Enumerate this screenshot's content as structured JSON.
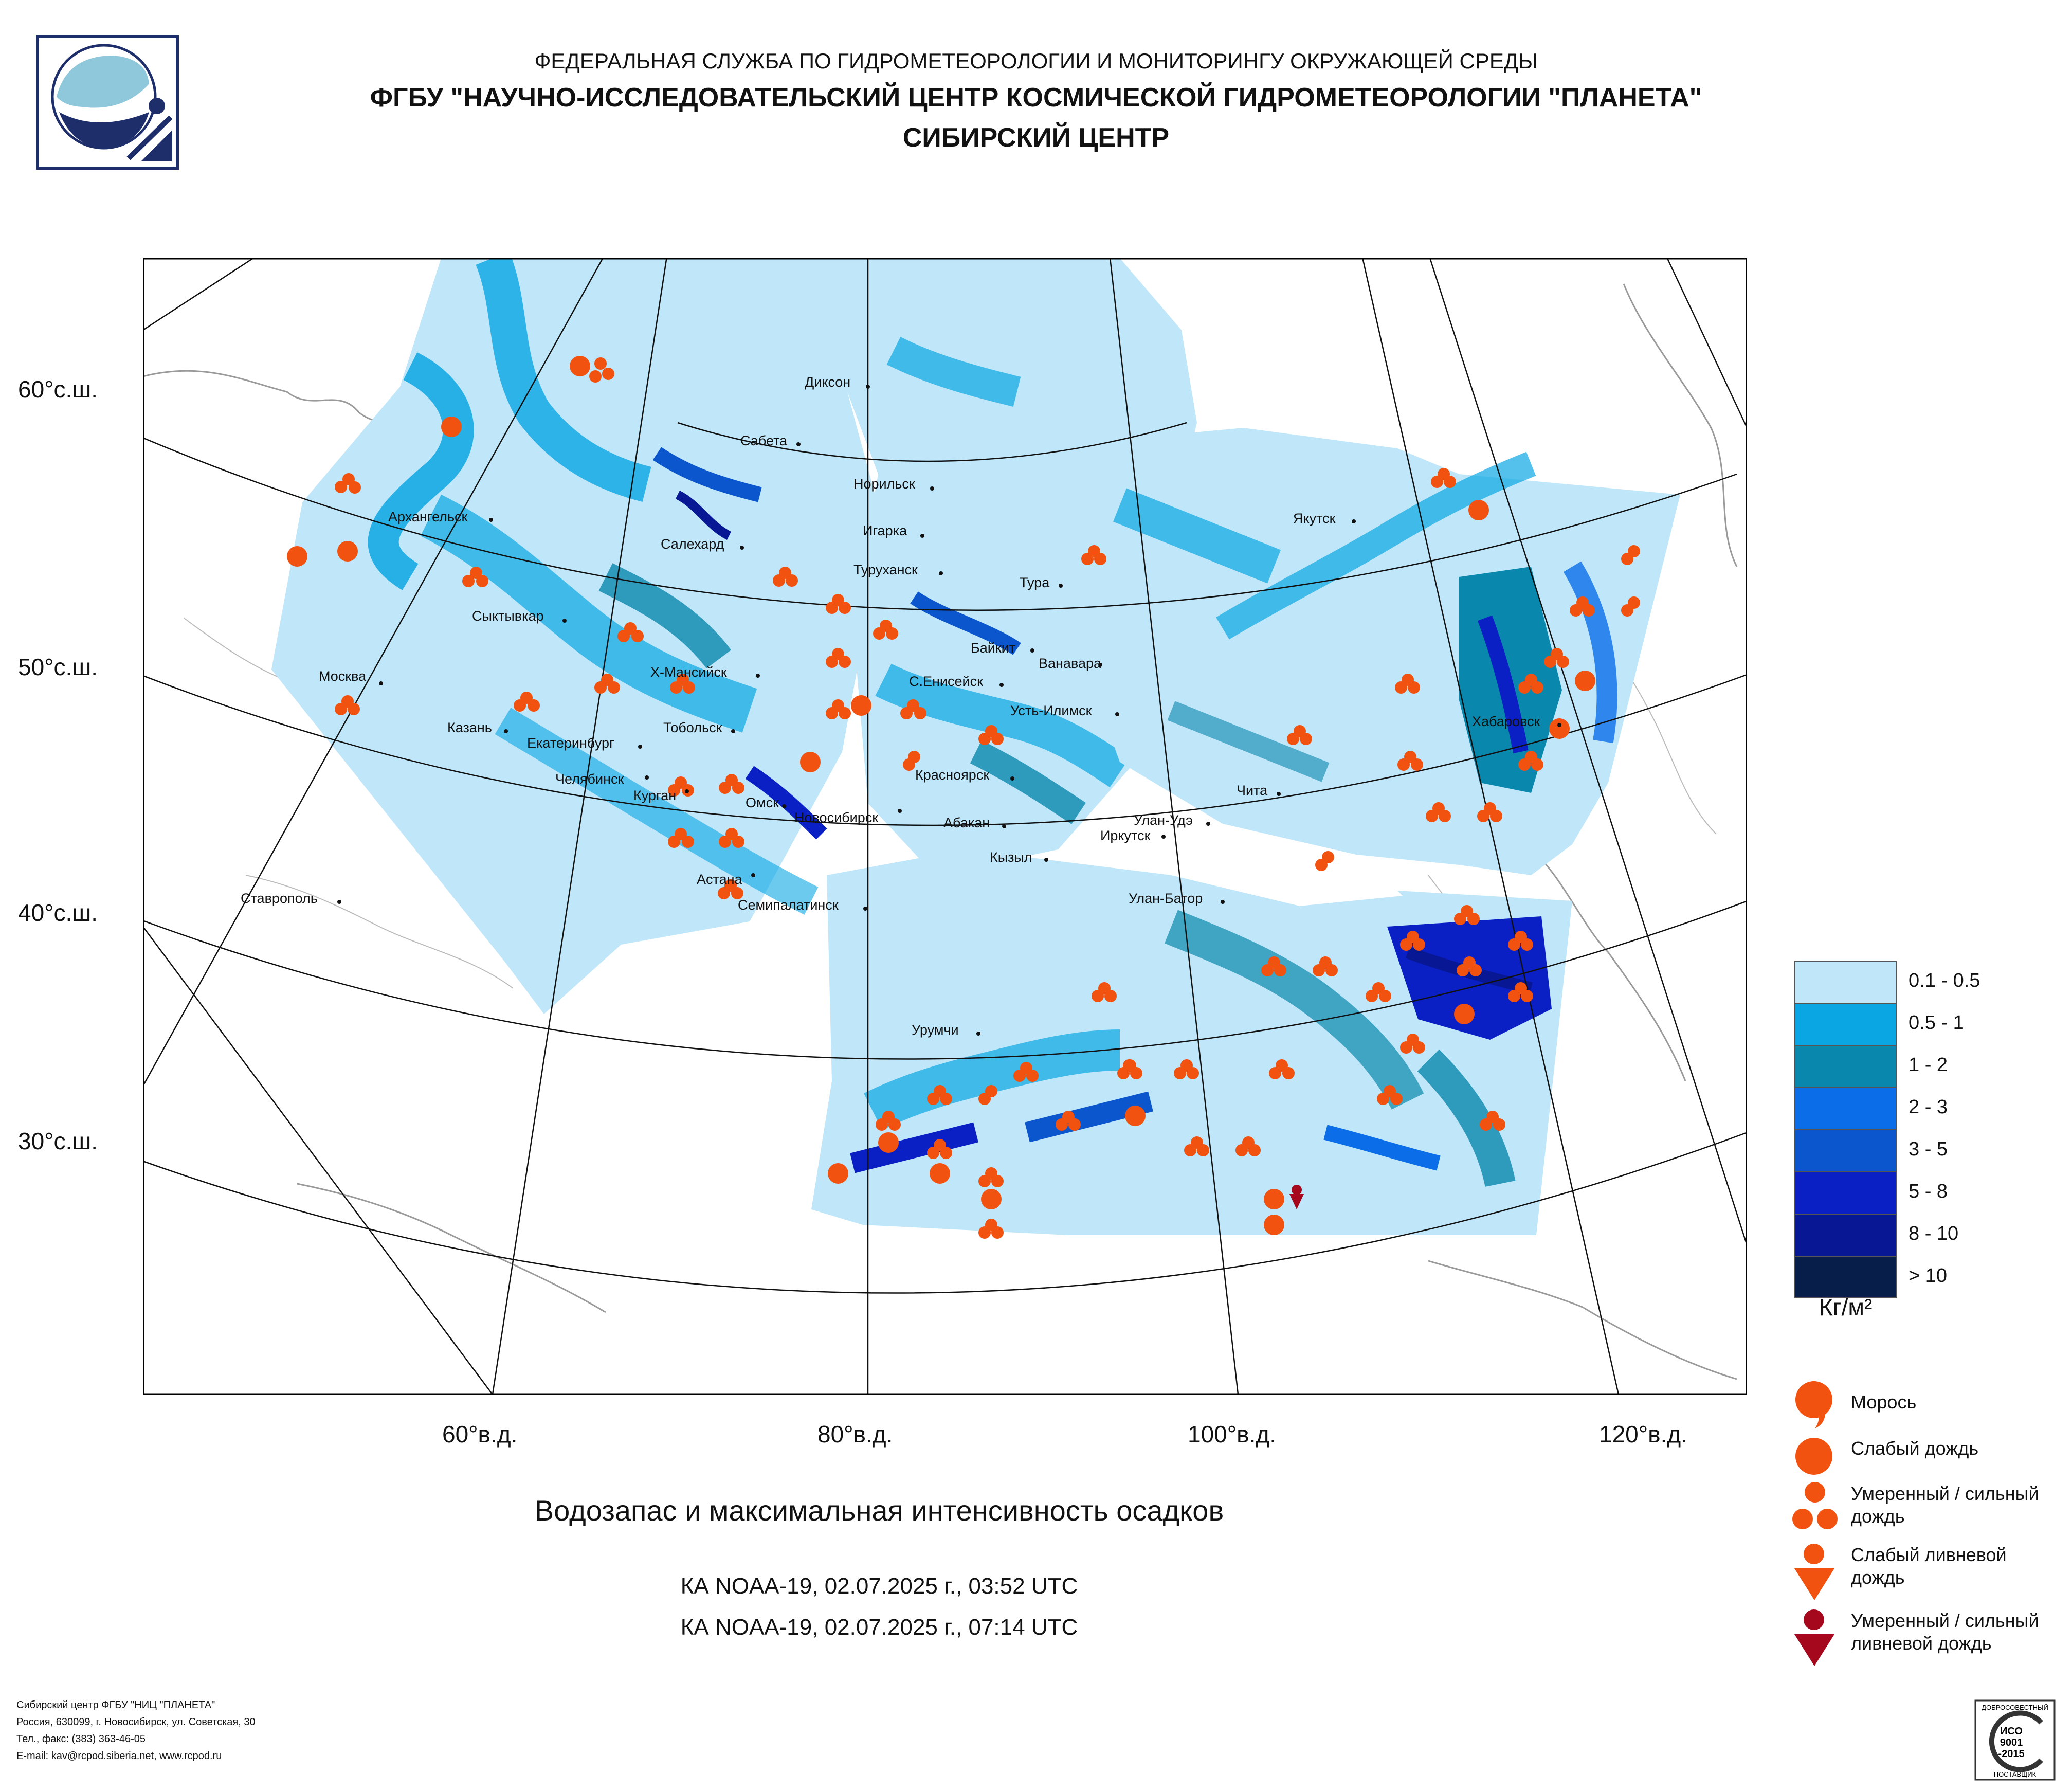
{
  "header": {
    "line1": "ФЕДЕРАЛЬНАЯ СЛУЖБА ПО ГИДРОМЕТЕОРОЛОГИИ И МОНИТОРИНГУ ОКРУЖАЮЩЕЙ СРЕДЫ",
    "line2": "ФГБУ \"НАУЧНО-ИССЛЕДОВАТЕЛЬСКИЙ ЦЕНТР КОСМИЧЕСКОЙ ГИДРОМЕТЕОРОЛОГИИ \"ПЛАНЕТА\"",
    "line3": "СИБИРСКИЙ ЦЕНТР"
  },
  "map": {
    "lat_labels": [
      "60°с.ш.",
      "50°с.ш.",
      "40°с.ш.",
      "30°с.ш."
    ],
    "lon_labels": [
      "60°в.д.",
      "80°в.д.",
      "100°в.д.",
      "120°в.д."
    ],
    "cities": [
      "Диксон",
      "Сабета",
      "Норильск",
      "Архангельск",
      "Игарка",
      "Якутск",
      "Салехард",
      "Туруханск",
      "Тура",
      "Сыктывкар",
      "Байкит",
      "Ванавара",
      "Москва",
      "Х-Мансийск",
      "С.Енисейск",
      "Хабаровск",
      "Казань",
      "Тобольск",
      "Усть-Илимск",
      "Екатеринбург",
      "Челябинск",
      "Красноярск",
      "Чита",
      "Курган",
      "Омск",
      "Новосибирск",
      "Абакан",
      "Улан-Удэ",
      "Иркутск",
      "Кызыл",
      "Ставрополь",
      "Астана",
      "Семипалатинск",
      "Улан-Батор",
      "Урумчи"
    ]
  },
  "legend": {
    "ranges": [
      "0.1 - 0.5",
      "0.5 - 1",
      "1 - 2",
      "2 - 3",
      "3 - 5",
      "5 - 8",
      "8 - 10",
      "> 10"
    ],
    "colors": [
      "#bfe6f9",
      "#0aa6e3",
      "#0a87ad",
      "#0b6ee8",
      "#0b56cc",
      "#0a1fc4",
      "#081894",
      "#071d4a"
    ],
    "unit": "Кг/м²",
    "symbols": {
      "drizzle": "Морось",
      "light_rain": "Слабый дождь",
      "moderate_rain_1": "Умеренный / сильный",
      "moderate_rain_2": "дождь",
      "light_shower_1": "Слабый ливневой",
      "light_shower_2": "дождь",
      "heavy_shower_1": "Умеренный / сильный",
      "heavy_shower_2": "ливневой дождь"
    },
    "symbol_color": "#f2520f",
    "shower_heavy_color": "#a5081c"
  },
  "title": "Водозапас и максимальная интенсивность осадков",
  "passes": [
    "КА NOAA-19, 02.07.2025 г., 03:52 UTC",
    "КА NOAA-19, 02.07.2025 г., 07:14 UTC"
  ],
  "footer": [
    "Сибирский центр ФГБУ \"НИЦ \"ПЛАНЕТА\"",
    "Россия, 630099, г. Новосибирск, ул. Советская, 30",
    "Тел., факс: (383) 363-46-05",
    "E-mail: kav@rcpod.siberia.net, www.rcpod.ru"
  ],
  "iso_badge": {
    "top": "ДОБРОСОВЕСТНЫЙ",
    "l1": "ИСО",
    "l2": "9001",
    "l3": "-2015",
    "bottom": "ПОСТАВЩИК"
  }
}
